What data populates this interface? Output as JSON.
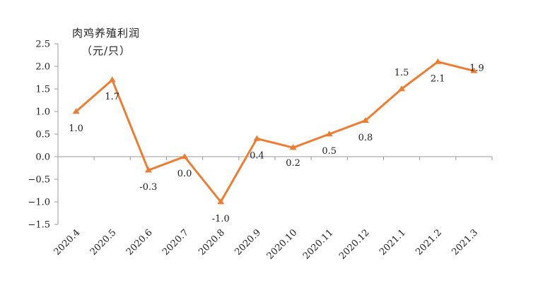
{
  "chart_data": {
    "type": "line",
    "title": "",
    "ylabel_line1": "肉鸡养殖利润",
    "ylabel_line2": "（元/只）",
    "categories": [
      "2020.4",
      "2020.5",
      "2020.6",
      "2020.7",
      "2020.8",
      "2020.9",
      "2020.10",
      "2020.11",
      "2020.12",
      "2021.1",
      "2021.2",
      "2021.3"
    ],
    "series": [
      {
        "values": [
          1.0,
          1.7,
          -0.3,
          0.0,
          -1.0,
          0.4,
          0.2,
          0.5,
          0.8,
          1.5,
          2.1,
          1.9
        ],
        "labels": [
          "1.0",
          "1.7",
          "-0.3",
          "0.0",
          "-1.0",
          "0.4",
          "0.2",
          "0.5",
          "0.8",
          "1.5",
          "2.1",
          "1.9"
        ],
        "color": "#ED7D31",
        "marker": "triangle"
      }
    ],
    "ylim": [
      -1.5,
      2.5
    ],
    "yticks": [
      2.5,
      2.0,
      1.5,
      1.0,
      0.5,
      0.0,
      -0.5,
      -1.0,
      -1.5
    ],
    "ytick_labels": [
      "2.5",
      "2.0",
      "1.5",
      "1.0",
      "0.5",
      "0.0",
      "−0.5",
      "−1.0",
      "−1.5"
    ],
    "grid": false,
    "legend": "none"
  }
}
